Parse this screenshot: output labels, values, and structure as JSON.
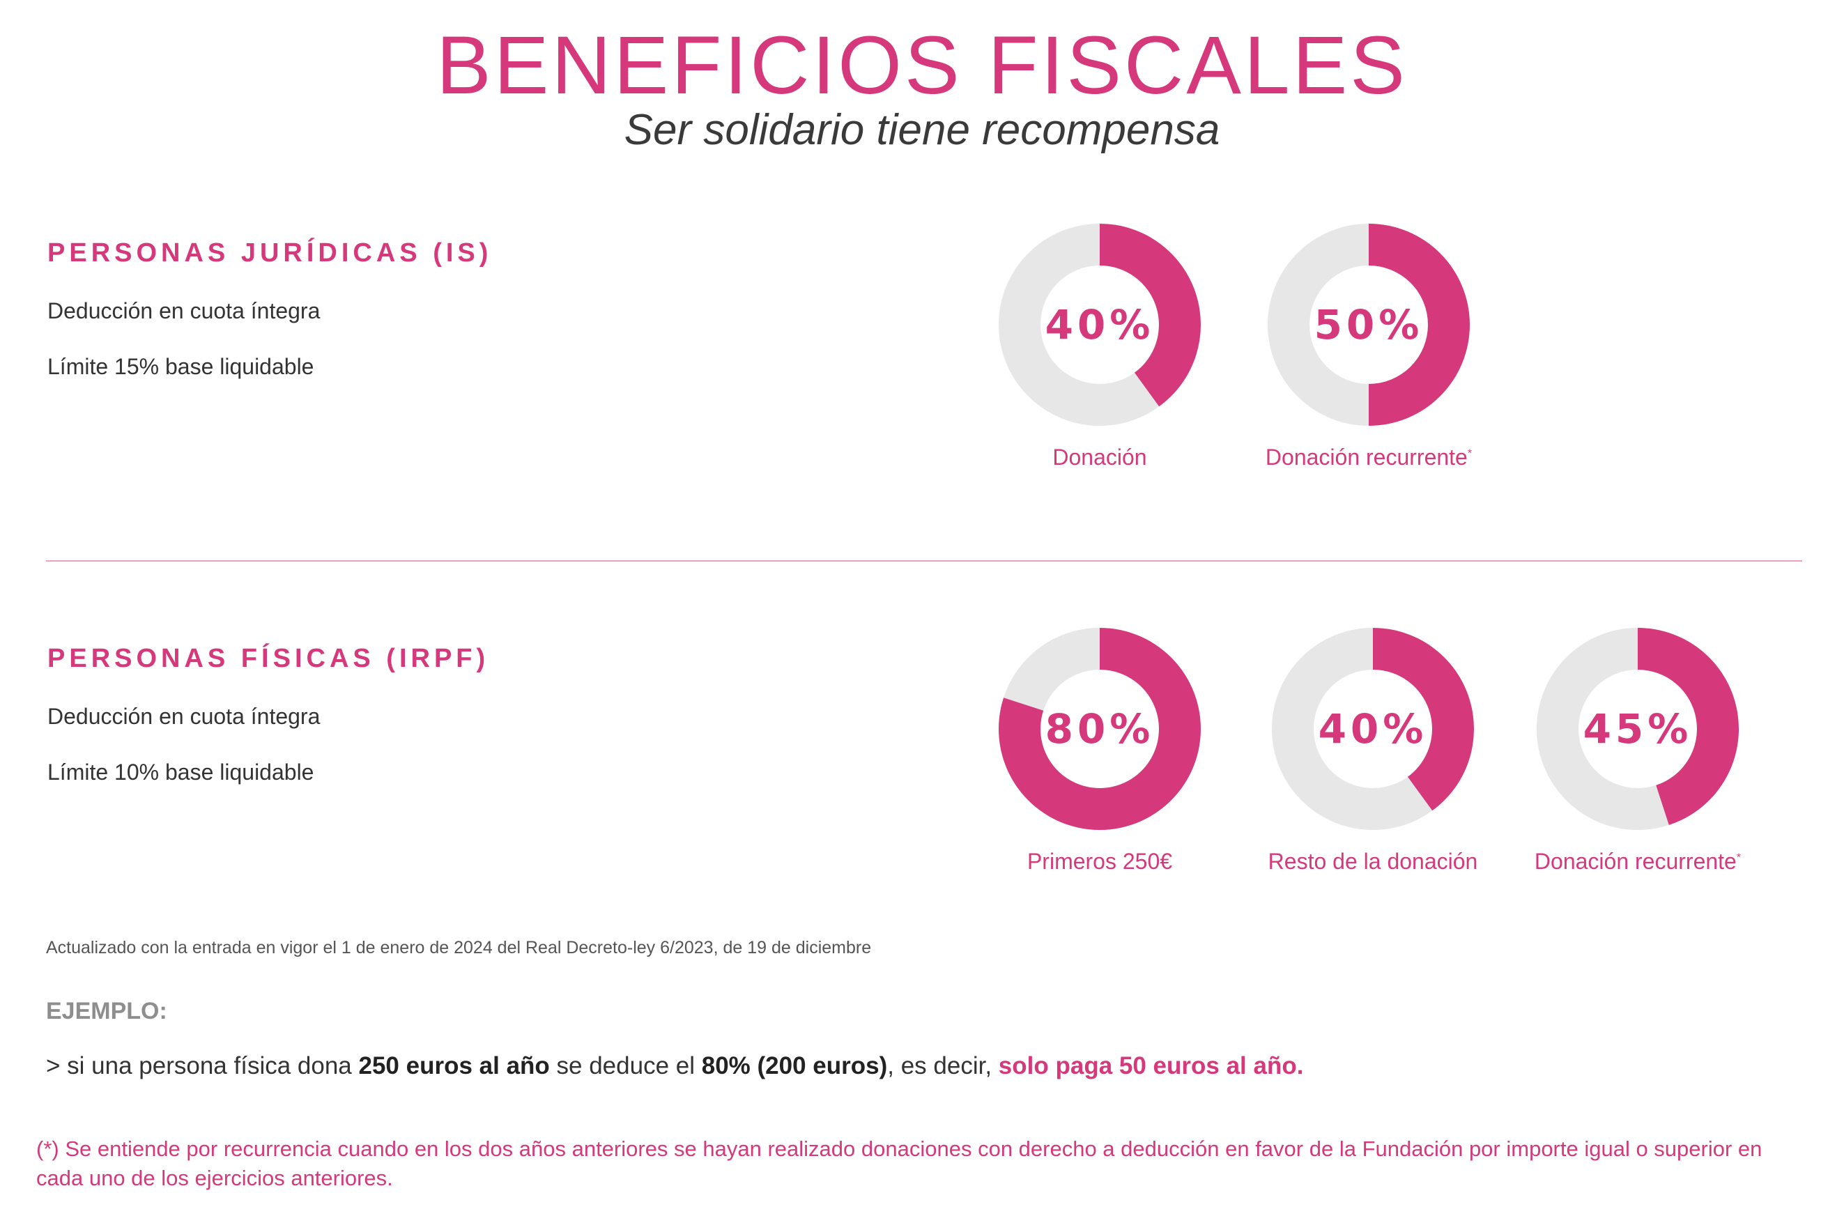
{
  "header": {
    "title": "BENEFICIOS FISCALES",
    "subtitle": "Ser solidario tiene recompensa"
  },
  "colors": {
    "accent": "#d6397b",
    "track": "#e7e7e7"
  },
  "juridicas": {
    "heading": "PERSONAS JURÍDICAS (IS)",
    "line1": "Deducción en cuota íntegra",
    "line2": "Límite 15% base liquidable",
    "donuts": [
      {
        "percent_text": "40%",
        "value": 40,
        "label": "Donación",
        "asterisk": ""
      },
      {
        "percent_text": "50%",
        "value": 50,
        "label": "Donación recurrente",
        "asterisk": "*"
      }
    ]
  },
  "fisicas": {
    "heading": "PERSONAS FÍSICAS (IRPF)",
    "line1": "Deducción en cuota íntegra",
    "line2": "Límite 10% base liquidable",
    "donuts": [
      {
        "percent_text": "80%",
        "value": 80,
        "label": "Primeros 250€",
        "asterisk": ""
      },
      {
        "percent_text": "40%",
        "value": 40,
        "label": "Resto de la donación",
        "asterisk": ""
      },
      {
        "percent_text": "45%",
        "value": 45,
        "label": "Donación recurrente",
        "asterisk": "*"
      }
    ]
  },
  "updated_note": "Actualizado con la entrada en vigor el 1 de enero de 2024 del Real Decreto-ley 6/2023, de 19 de diciembre",
  "example": {
    "heading": "EJEMPLO:",
    "prefix": ">  si una persona física dona ",
    "amount": "250 euros al año",
    "middle": " se deduce el ",
    "deduction": "80% (200 euros)",
    "middle2": ", es decir, ",
    "highlight": "solo paga 50 euros al año."
  },
  "footnote": "(*) Se entiende por recurrencia cuando en los dos años anteriores se hayan realizado donaciones con derecho a deducción en favor de la Fundación por importe igual o superior en cada uno de los ejercicios anteriores."
}
